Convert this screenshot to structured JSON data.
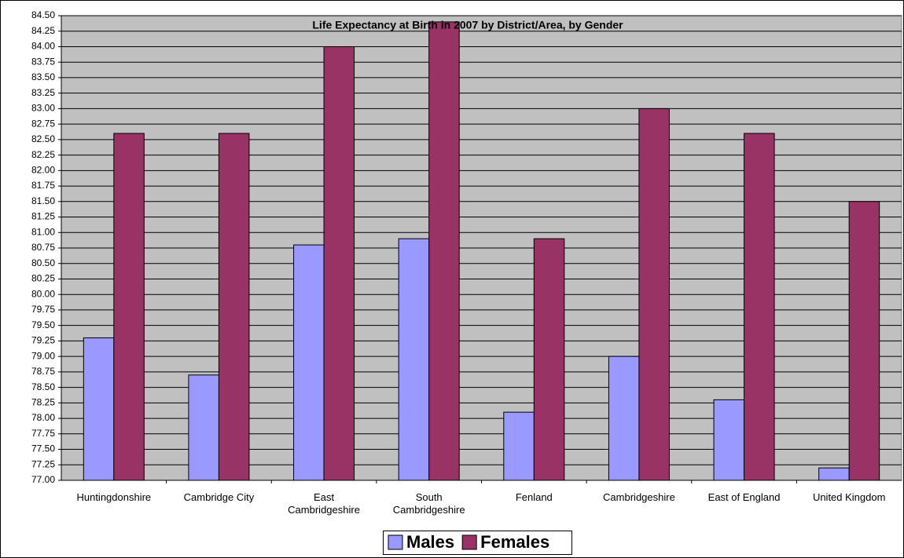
{
  "chart_data": {
    "type": "bar",
    "title": "Life Expectancy at Birth in 2007 by District/Area, by Gender",
    "categories": [
      "Huntingdonshire",
      "Cambridge City",
      "East Cambridgeshire",
      "South Cambridgeshire",
      "Fenland",
      "Cambridgeshire",
      "East of England",
      "United Kingdom"
    ],
    "series": [
      {
        "name": "Males",
        "color": "#9999ff",
        "values": [
          79.3,
          78.7,
          80.8,
          80.9,
          78.1,
          79.0,
          78.3,
          77.2
        ]
      },
      {
        "name": "Females",
        "color": "#993366",
        "values": [
          82.6,
          82.6,
          84.0,
          84.4,
          80.9,
          83.0,
          82.6,
          81.5
        ]
      }
    ],
    "ylim": [
      77,
      84.5
    ],
    "yticks": [
      {
        "value": 77,
        "label": "77.00"
      },
      77.25,
      {
        "value": 77.5,
        "label": "77.50"
      },
      77.75,
      {
        "value": 78,
        "label": "78.00"
      },
      78.25,
      {
        "value": 78.5,
        "label": "78.50"
      },
      78.75,
      {
        "value": 79,
        "label": "79.00"
      },
      79.25,
      {
        "value": 79.5,
        "label": "79.50"
      },
      79.75,
      {
        "value": 80,
        "label": "80.00"
      },
      80.25,
      {
        "value": 80.5,
        "label": "80.50"
      },
      80.75,
      {
        "value": 81,
        "label": "81.00"
      },
      81.25,
      {
        "value": 81.5,
        "label": "81.50"
      },
      81.75,
      {
        "value": 82,
        "label": "82.00"
      },
      82.25,
      {
        "value": 82.5,
        "label": "82.50"
      },
      82.75,
      {
        "value": 83,
        "label": "83.00"
      },
      83.25,
      {
        "value": 83.5,
        "label": "83.50"
      },
      83.75,
      {
        "value": 84,
        "label": "84.00"
      },
      84.25,
      {
        "value": 84.5,
        "label": "84.50"
      }
    ],
    "grid": true,
    "legend": "bottom"
  }
}
